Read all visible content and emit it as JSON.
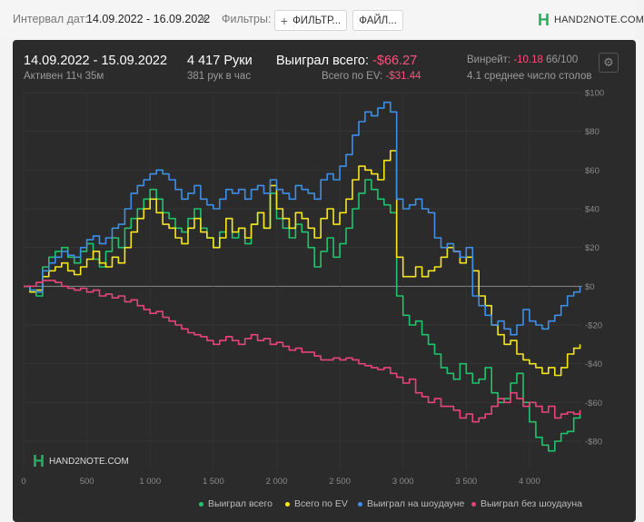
{
  "toolbar": {
    "date_label": "Интервал дат:",
    "date_value": "14.09.2022 - 16.09.2022",
    "filters_label": "Фильтры:",
    "filter_button": "ФИЛЬТР...",
    "files_button": "ФАЙЛ...",
    "logo_text": "HAND2NOTE.COM"
  },
  "stats": {
    "range": "14.09.2022 - 15.09.2022",
    "active": "Активен 11ч 35м",
    "hands": "4 417 Руки",
    "hands_per_hour": "381 рук в час",
    "won_label": "Выиграл всего:",
    "won_value": "-$66.27",
    "ev_label": "Всего по EV:",
    "ev_value": "-$31.44",
    "winrate_label": "Винрейт:",
    "winrate_value": "-10.18",
    "winrate_unit": "66/100",
    "tables": "4.1 среднее число столов"
  },
  "watermark": "HAND2NOTE.COM",
  "colors": {
    "won": "#1fc46c",
    "ev": "#f5e51e",
    "showdown": "#3d8fe8",
    "nonshowdown": "#e8447a"
  },
  "chart_data": {
    "type": "line",
    "xlim": [
      0,
      4417
    ],
    "ylim": [
      -95,
      100
    ],
    "xticks": [
      0,
      500,
      1000,
      1500,
      2000,
      2500,
      3000,
      3500,
      4000
    ],
    "xtick_labels": [
      "0",
      "500",
      "1 000",
      "1 500",
      "2 000",
      "2 500",
      "3 000",
      "3 500",
      "4 000"
    ],
    "yticks": [
      100,
      80,
      60,
      40,
      20,
      0,
      -20,
      -40,
      -60,
      -80
    ],
    "ytick_labels": [
      "$100",
      "$80",
      "$60",
      "$40",
      "$20",
      "$0",
      "-$20",
      "-$40",
      "-$60",
      "-$80"
    ],
    "grid": true,
    "legend_position": "bottom-right",
    "series": [
      {
        "name": "Выиграл всего",
        "color": "#1fc46c",
        "x": [
          0,
          50,
          100,
          150,
          200,
          250,
          300,
          350,
          400,
          450,
          500,
          550,
          600,
          650,
          700,
          750,
          800,
          850,
          900,
          950,
          1000,
          1050,
          1100,
          1150,
          1200,
          1250,
          1300,
          1350,
          1400,
          1450,
          1500,
          1550,
          1600,
          1650,
          1700,
          1750,
          1800,
          1850,
          1900,
          1950,
          2000,
          2050,
          2100,
          2150,
          2200,
          2250,
          2300,
          2350,
          2400,
          2450,
          2500,
          2550,
          2600,
          2650,
          2700,
          2750,
          2800,
          2850,
          2900,
          2950,
          3000,
          3050,
          3100,
          3150,
          3200,
          3250,
          3300,
          3350,
          3400,
          3450,
          3500,
          3550,
          3600,
          3650,
          3700,
          3750,
          3800,
          3850,
          3900,
          3950,
          4000,
          4050,
          4100,
          4150,
          4200,
          4250,
          4300,
          4350,
          4400
        ],
        "y": [
          0,
          -2,
          -5,
          10,
          15,
          18,
          20,
          15,
          12,
          18,
          22,
          14,
          10,
          18,
          25,
          20,
          30,
          35,
          40,
          45,
          50,
          45,
          38,
          35,
          30,
          28,
          35,
          40,
          30,
          25,
          20,
          28,
          35,
          25,
          30,
          22,
          32,
          38,
          30,
          48,
          35,
          30,
          25,
          32,
          28,
          20,
          10,
          18,
          25,
          15,
          22,
          30,
          40,
          48,
          55,
          50,
          45,
          42,
          38,
          -5,
          -15,
          -20,
          -18,
          -25,
          -30,
          -35,
          -42,
          -45,
          -48,
          -40,
          -45,
          -50,
          -48,
          -42,
          -55,
          -60,
          -58,
          -50,
          -45,
          -60,
          -70,
          -78,
          -82,
          -85,
          -80,
          -76,
          -75,
          -68,
          -64
        ]
      },
      {
        "name": "Всего по EV",
        "color": "#f5e51e",
        "x": [
          0,
          50,
          100,
          150,
          200,
          250,
          300,
          350,
          400,
          450,
          500,
          550,
          600,
          650,
          700,
          750,
          800,
          850,
          900,
          950,
          1000,
          1050,
          1100,
          1150,
          1200,
          1250,
          1300,
          1350,
          1400,
          1450,
          1500,
          1550,
          1600,
          1650,
          1700,
          1750,
          1800,
          1850,
          1900,
          1950,
          2000,
          2050,
          2100,
          2150,
          2200,
          2250,
          2300,
          2350,
          2400,
          2450,
          2500,
          2550,
          2600,
          2650,
          2700,
          2750,
          2800,
          2850,
          2900,
          2950,
          3000,
          3050,
          3100,
          3150,
          3200,
          3250,
          3300,
          3350,
          3400,
          3450,
          3500,
          3550,
          3600,
          3650,
          3700,
          3750,
          3800,
          3850,
          3900,
          3950,
          4000,
          4050,
          4100,
          4150,
          4200,
          4250,
          4300,
          4350,
          4400
        ],
        "y": [
          0,
          -3,
          -2,
          5,
          8,
          10,
          12,
          8,
          6,
          10,
          14,
          18,
          12,
          10,
          15,
          12,
          20,
          28,
          35,
          40,
          45,
          38,
          32,
          30,
          25,
          22,
          30,
          35,
          28,
          25,
          20,
          25,
          35,
          28,
          30,
          25,
          32,
          38,
          30,
          52,
          40,
          35,
          30,
          38,
          35,
          30,
          25,
          35,
          40,
          32,
          38,
          45,
          55,
          62,
          60,
          58,
          55,
          65,
          70,
          15,
          5,
          5,
          10,
          5,
          8,
          10,
          15,
          20,
          18,
          12,
          15,
          8,
          -5,
          -10,
          -20,
          -25,
          -30,
          -28,
          -35,
          -38,
          -40,
          -42,
          -45,
          -42,
          -46,
          -42,
          -35,
          -32,
          -30
        ]
      },
      {
        "name": "Выиграл на шоудауне",
        "color": "#3d8fe8",
        "x": [
          0,
          50,
          100,
          150,
          200,
          250,
          300,
          350,
          400,
          450,
          500,
          550,
          600,
          650,
          700,
          750,
          800,
          850,
          900,
          950,
          1000,
          1050,
          1100,
          1150,
          1200,
          1250,
          1300,
          1350,
          1400,
          1450,
          1500,
          1550,
          1600,
          1650,
          1700,
          1750,
          1800,
          1850,
          1900,
          1950,
          2000,
          2050,
          2100,
          2150,
          2200,
          2250,
          2300,
          2350,
          2400,
          2450,
          2500,
          2550,
          2600,
          2650,
          2700,
          2750,
          2800,
          2850,
          2900,
          2950,
          3000,
          3050,
          3100,
          3150,
          3200,
          3250,
          3300,
          3350,
          3400,
          3450,
          3500,
          3550,
          3600,
          3650,
          3700,
          3750,
          3800,
          3850,
          3900,
          3950,
          4000,
          4050,
          4100,
          4150,
          4200,
          4250,
          4300,
          4350,
          4400
        ],
        "y": [
          0,
          -2,
          -3,
          8,
          12,
          15,
          18,
          16,
          15,
          20,
          24,
          26,
          22,
          25,
          30,
          32,
          40,
          48,
          52,
          55,
          58,
          60,
          58,
          55,
          50,
          45,
          48,
          52,
          45,
          42,
          40,
          45,
          50,
          48,
          50,
          45,
          50,
          52,
          48,
          55,
          50,
          48,
          45,
          52,
          50,
          48,
          45,
          55,
          58,
          55,
          62,
          68,
          78,
          85,
          90,
          88,
          92,
          95,
          90,
          45,
          40,
          42,
          45,
          40,
          38,
          25,
          20,
          22,
          18,
          15,
          20,
          -5,
          -10,
          -15,
          -20,
          -18,
          -22,
          -25,
          -20,
          -12,
          -18,
          -20,
          -22,
          -18,
          -15,
          -10,
          -5,
          -3,
          0
        ]
      },
      {
        "name": "Выиграл без шоудауна",
        "color": "#e8447a",
        "x": [
          0,
          50,
          100,
          150,
          200,
          250,
          300,
          350,
          400,
          450,
          500,
          550,
          600,
          650,
          700,
          750,
          800,
          850,
          900,
          950,
          1000,
          1050,
          1100,
          1150,
          1200,
          1250,
          1300,
          1350,
          1400,
          1450,
          1500,
          1550,
          1600,
          1650,
          1700,
          1750,
          1800,
          1850,
          1900,
          1950,
          2000,
          2050,
          2100,
          2150,
          2200,
          2250,
          2300,
          2350,
          2400,
          2450,
          2500,
          2550,
          2600,
          2650,
          2700,
          2750,
          2800,
          2850,
          2900,
          2950,
          3000,
          3050,
          3100,
          3150,
          3200,
          3250,
          3300,
          3350,
          3400,
          3450,
          3500,
          3550,
          3600,
          3650,
          3700,
          3750,
          3800,
          3850,
          3900,
          3950,
          4000,
          4050,
          4100,
          4150,
          4200,
          4250,
          4300,
          4350,
          4400
        ],
        "y": [
          0,
          0,
          2,
          3,
          3,
          2,
          0,
          -1,
          -2,
          -1,
          -3,
          -2,
          -5,
          -4,
          -6,
          -5,
          -8,
          -7,
          -10,
          -12,
          -14,
          -13,
          -16,
          -18,
          -20,
          -22,
          -24,
          -25,
          -26,
          -28,
          -30,
          -28,
          -26,
          -28,
          -30,
          -27,
          -25,
          -28,
          -27,
          -30,
          -29,
          -31,
          -33,
          -32,
          -34,
          -34,
          -36,
          -38,
          -38,
          -37,
          -38,
          -37,
          -38,
          -40,
          -41,
          -42,
          -43,
          -42,
          -45,
          -47,
          -50,
          -48,
          -55,
          -57,
          -60,
          -58,
          -62,
          -62,
          -64,
          -68,
          -66,
          -70,
          -68,
          -66,
          -62,
          -58,
          -60,
          -55,
          -58,
          -62,
          -60,
          -62,
          -65,
          -62,
          -68,
          -66,
          -65,
          -66,
          -64
        ]
      }
    ]
  }
}
